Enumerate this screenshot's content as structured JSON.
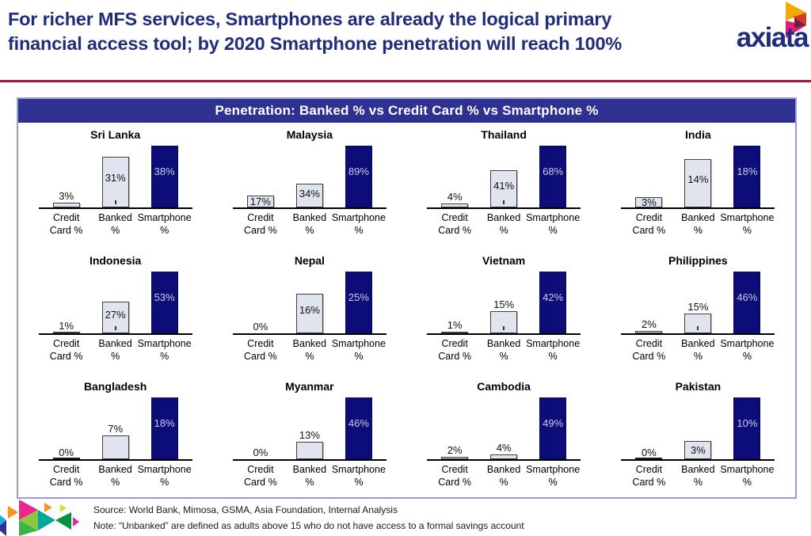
{
  "slide": {
    "title_line1": "For richer MFS services, Smartphones are already the logical primary",
    "title_line2": "financial access tool; by 2020 Smartphone penetration will reach 100%",
    "brand_wordmark": "axiata"
  },
  "chart_data": {
    "type": "bar",
    "title": "Penetration: Banked % vs Credit Card % vs Smartphone %",
    "categories": [
      "Credit Card %",
      "Banked %",
      "Smartphone %"
    ],
    "category_lines": [
      [
        "Credit",
        "Card %"
      ],
      [
        "Banked",
        "%"
      ],
      [
        "Smartphone",
        "%"
      ]
    ],
    "scaling": "each mini-chart scaled to its own max value",
    "grid": "off",
    "legend": "none",
    "colors": {
      "credit_card_fill": "#e0e4ef",
      "banked_fill": "#e0e4ef",
      "smartphone_fill": "#0c0d78",
      "bar_border": "#3f3f3f",
      "label_on_dark": "#c9cdeb",
      "header_bg": "#2e3192",
      "accent_rule": "#ab1240",
      "title_navy": "#202c7c"
    },
    "countries": [
      {
        "name": "Sri Lanka",
        "values": [
          3,
          31,
          38
        ],
        "labels": [
          "3%",
          "31%",
          "38%"
        ],
        "label_inside": [
          false,
          true,
          true
        ],
        "banked_tick": true,
        "zero_bar_visible": false
      },
      {
        "name": "Malaysia",
        "values": [
          17,
          34,
          89
        ],
        "labels": [
          "17%",
          "34%",
          "89%"
        ],
        "label_inside": [
          true,
          true,
          true
        ],
        "banked_tick": false,
        "zero_bar_visible": false
      },
      {
        "name": "Thailand",
        "values": [
          4,
          41,
          68
        ],
        "labels": [
          "4%",
          "41%",
          "68%"
        ],
        "label_inside": [
          false,
          true,
          true
        ],
        "banked_tick": true,
        "zero_bar_visible": false
      },
      {
        "name": "India",
        "values": [
          3,
          14,
          18
        ],
        "labels": [
          "3%",
          "14%",
          "18%"
        ],
        "label_inside": [
          true,
          true,
          true
        ],
        "banked_tick": false,
        "zero_bar_visible": false
      },
      {
        "name": "Indonesia",
        "values": [
          1,
          27,
          53
        ],
        "labels": [
          "1%",
          "27%",
          "53%"
        ],
        "label_inside": [
          false,
          true,
          true
        ],
        "banked_tick": true,
        "zero_bar_visible": false
      },
      {
        "name": "Nepal",
        "values": [
          0,
          16,
          25
        ],
        "labels": [
          "0%",
          "16%",
          "25%"
        ],
        "label_inside": [
          false,
          true,
          true
        ],
        "banked_tick": false,
        "zero_bar_visible": false
      },
      {
        "name": "Vietnam",
        "values": [
          1,
          15,
          42
        ],
        "labels": [
          "1%",
          "15%",
          "42%"
        ],
        "label_inside": [
          false,
          false,
          true
        ],
        "banked_tick": true,
        "zero_bar_visible": false
      },
      {
        "name": "Philippines",
        "values": [
          2,
          15,
          46
        ],
        "labels": [
          "2%",
          "15%",
          "46%"
        ],
        "label_inside": [
          false,
          false,
          true
        ],
        "banked_tick": true,
        "zero_bar_visible": false
      },
      {
        "name": "Bangladesh",
        "values": [
          0,
          7,
          18
        ],
        "labels": [
          "0%",
          "7%",
          "18%"
        ],
        "label_inside": [
          false,
          false,
          true
        ],
        "banked_tick": false,
        "zero_bar_visible": true
      },
      {
        "name": "Myanmar",
        "values": [
          0,
          13,
          46
        ],
        "labels": [
          "0%",
          "13%",
          "46%"
        ],
        "label_inside": [
          false,
          false,
          true
        ],
        "banked_tick": false,
        "zero_bar_visible": false
      },
      {
        "name": "Cambodia",
        "values": [
          2,
          4,
          49
        ],
        "labels": [
          "2%",
          "4%",
          "49%"
        ],
        "label_inside": [
          false,
          false,
          true
        ],
        "banked_tick": false,
        "zero_bar_visible": false
      },
      {
        "name": "Pakistan",
        "values": [
          0,
          3,
          10
        ],
        "labels": [
          "0%",
          "3%",
          "10%"
        ],
        "label_inside": [
          false,
          true,
          true
        ],
        "banked_tick": false,
        "zero_bar_visible": true
      }
    ]
  },
  "footer": {
    "source": "Source: World Bank, Mimosa, GSMA, Asia Foundation, Internal Analysis",
    "note": "Note: “Unbanked” are defined as adults above 15 who do not have access to a formal savings account"
  }
}
